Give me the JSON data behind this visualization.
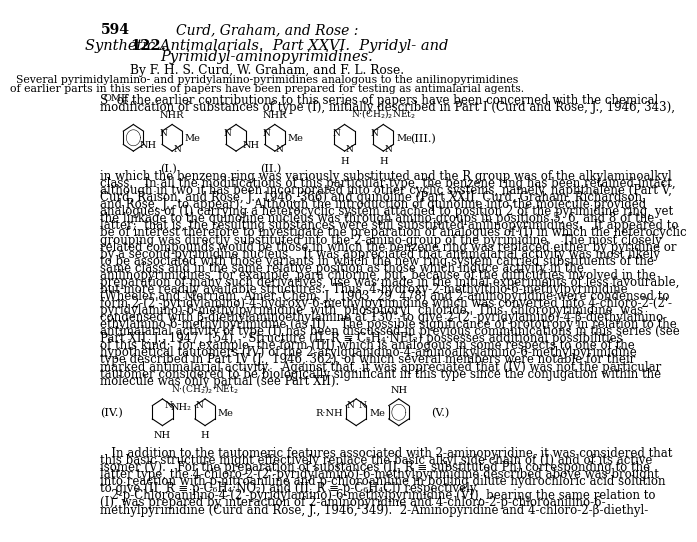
{
  "page_number": "594",
  "header": "Curd, Graham, and Rose :",
  "title_bold": "122.",
  "title_italic1": "Synthetic Antimalarials.  Part XXVI.  Pyridyl- and",
  "title_italic2": "Pyrimidyl-aminopyrimidines.",
  "authors": "By F. H. S. Curd, W. Graham, and F. L. Rose.",
  "abstract1": "Several pyrimidylamino- and pyridylamino-pyrimidines analogous to the anilinopyrimidines",
  "abstract2": "of earlier parts in this series of papers have been prepared for testing as antimalarial agents.",
  "body_lines": [
    "Some of the earlier contributions to this series of papers have been concerned with the chemical",
    "modification of substances of type (I), initially described in Part I (Curd and Rose, J., 1946, 343),",
    "in which the benzene ring was variously substituted and the R group was of the alkylaminoalkyl",
    "class.   In all the modifications of this particular type, the benzene ring has been retained intact,",
    "although in two it has been incorporated into other cyclic systems, namely, naphthalene (Part V,",
    "Curd, Raison, and Rose, J., 1946, 366) and quinoline (Part XXII, Curd, Graham, Richardson,",
    "and Rose, J., to appear).   Although the introduction of quinoline into the molecule provided",
    "analogues of (I) carrying a heterocyclic system attached to position 2 of the pyrimidine ring, yet",
    "the linkage to the quinoline nucleus was through amino-groups in positions 5, 6, and 8 of the",
    "latter;  that is, the resulting substances were still substituted anilinopyrimidines.   It appeared to",
    "be of interest therefore to investigate the preparation of analogues of (I) in which the heterocyclic",
    "grouping was directly substituted into the 2-amino-group of the pyrimidine.   The most closely",
    "related compounds would be those in which the benzene ring was replaced either by pyridine or",
    "by a second pyrimidine nucleus.   It was appreciated that antimalarial activity was most likely",
    "to be associated with those variants in which the new ring system carried substituents of the",
    "same class and in the same relative position as those which induce activity in the",
    "anilinopyrimidines, for example, para chlorine, but, because of the difficulties involved in the",
    "preparation of many such derivatives, use was made in the initial experiments of less favourable,",
    "but more readily available structures.  Thus, 4-hydroxy-2-methylthio-6-methylpyrimidine",
    "(Wheeler and Merriam, Amer. Chem. J., 1903, 29, 478) and 2-aminopyridine were condensed to",
    "form 2-(2'-pyridylamino)-4-hydroxy-6-methylpyrimidine which was converted into 4-chloro-2-(2'-",
    "pyridylamino)-6-methylpyrimidine  with  phosphoryl  chloride.  This  chloropyrimidine  was",
    "condensed with β-diethylaminoethylamine at 130° to give 2-(2'-pyridylamino)-4-β-diethylamino-",
    "ethylamino-6-methylpyrimidine (as II).   The possible significance of prototropy in relation to the",
    "antimalarial activity of type (I) has been discussed in previous communications in this series (see",
    "Part XII, J., 1947, 154).   Structure (II, R ≡ C₅H₄·NEt₂) possesses additional possibilities",
    "of this kind;  for example, the form (III) which is analogous in some respects to one of the",
    "hypothetical tautomers (IV) of the 2-arylguanidino-4-aminoalkylamino-6-methylpyrimidine",
    "type described in Part IV (J., 1946, 362), of which several members were notable for their",
    "marked antimalarial activity.   Against that, it was appreciated that (IV) was not the particular",
    "tautomer considered to be biologically significant in this type since the conjugation within the",
    "molecule was only partial (see Part XII)."
  ],
  "body2_lines": [
    "   In addition to the tautomeric features associated with 2-aminopyridine, it was considered that",
    "this basic structure might effectively replace the basic alkyl side chain of (I) and of its active",
    "isomer (V).   For the preparation of substances (II, R ≡ substituted Ph) corresponding to the",
    "latter type, the 4-chloro-2-(2'-pyridylamino)-6-methylpyrimidine described above was brought",
    "into reaction with p-nitroaniline and p-chloroaniline in boiling dilute hydrochloric acid solution",
    "to give (II, R ≡ p-C₆H₄·NO₂) and (II, R ≡ p-C₆H₄Cl) respectively.",
    "   2-p-Chloroanilino-4-(2'-pyridylamino)-6-methylpyrimidine (VI), bearing the same relation to",
    "(I), was prepared by interaction of 2-aminopyridine and 4-chloro-2-p-chloroanilino-6-",
    "methylpyrimidine (Curd and Rose, J., 1946, 349).  2-Aminopyridine and 4-chloro-2-β-diethyl-"
  ],
  "background_color": "#ffffff",
  "text_color": "#000000"
}
